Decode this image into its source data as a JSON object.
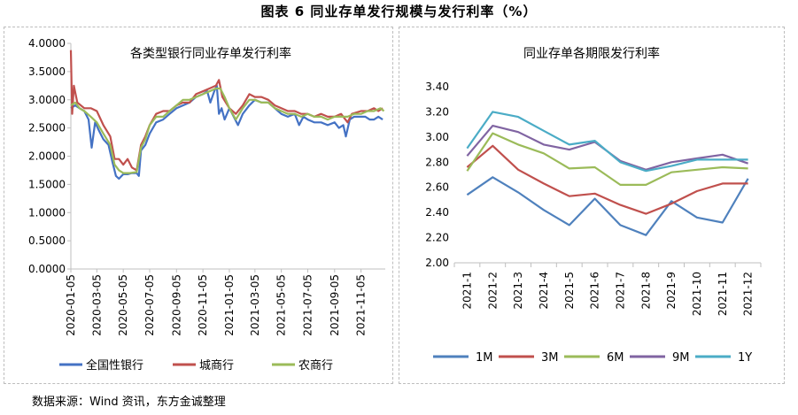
{
  "figure_title": "图表 6   同业存单发行规模与发行利率（%）",
  "source": "数据来源：Wind 资讯，东方金诚整理",
  "chart_data": [
    {
      "type": "line",
      "title": "各类型银行同业存单发行利率",
      "ylim": [
        0,
        4
      ],
      "yticks": [
        "0.0000",
        "0.5000",
        "1.0000",
        "1.5000",
        "2.0000",
        "2.5000",
        "3.0000",
        "3.5000",
        "4.0000"
      ],
      "ytick_values": [
        0,
        0.5,
        1,
        1.5,
        2,
        2.5,
        3,
        3.5,
        4
      ],
      "xticks": [
        "2020-01-05",
        "2020-03-05",
        "2020-05-05",
        "2020-07-05",
        "2020-09-05",
        "2020-11-05",
        "2021-01-05",
        "2021-03-05",
        "2021-05-05",
        "2021-07-05",
        "2021-09-05",
        "2021-11-05"
      ],
      "x_start": "2020-01-05",
      "x_end": "2021-12-31",
      "legend_position": "bottom",
      "series": [
        {
          "name": "全国性银行",
          "color": "#4472C4",
          "points": [
            [
              "2020-01-05",
              2.85
            ],
            [
              "2020-01-15",
              2.9
            ],
            [
              "2020-01-25",
              2.85
            ],
            [
              "2020-02-05",
              2.8
            ],
            [
              "2020-02-15",
              2.65
            ],
            [
              "2020-02-22",
              2.15
            ],
            [
              "2020-03-01",
              2.6
            ],
            [
              "2020-03-10",
              2.45
            ],
            [
              "2020-03-20",
              2.3
            ],
            [
              "2020-04-01",
              2.2
            ],
            [
              "2020-04-10",
              1.9
            ],
            [
              "2020-04-18",
              1.65
            ],
            [
              "2020-04-25",
              1.6
            ],
            [
              "2020-05-05",
              1.68
            ],
            [
              "2020-05-15",
              1.68
            ],
            [
              "2020-05-25",
              1.7
            ],
            [
              "2020-06-05",
              1.7
            ],
            [
              "2020-06-10",
              1.65
            ],
            [
              "2020-06-15",
              2.1
            ],
            [
              "2020-06-25",
              2.2
            ],
            [
              "2020-07-05",
              2.4
            ],
            [
              "2020-07-20",
              2.6
            ],
            [
              "2020-08-05",
              2.65
            ],
            [
              "2020-08-20",
              2.75
            ],
            [
              "2020-09-05",
              2.85
            ],
            [
              "2020-09-20",
              2.9
            ],
            [
              "2020-10-05",
              2.95
            ],
            [
              "2020-10-20",
              3.05
            ],
            [
              "2020-11-05",
              3.1
            ],
            [
              "2020-11-15",
              3.15
            ],
            [
              "2020-11-22",
              2.95
            ],
            [
              "2020-12-01",
              3.15
            ],
            [
              "2020-12-07",
              3.25
            ],
            [
              "2020-12-12",
              2.75
            ],
            [
              "2020-12-18",
              2.85
            ],
            [
              "2020-12-25",
              2.65
            ],
            [
              "2021-01-05",
              2.85
            ],
            [
              "2021-01-15",
              2.7
            ],
            [
              "2021-01-25",
              2.55
            ],
            [
              "2021-02-05",
              2.75
            ],
            [
              "2021-02-20",
              2.9
            ],
            [
              "2021-03-05",
              3.0
            ],
            [
              "2021-03-20",
              2.95
            ],
            [
              "2021-04-05",
              2.95
            ],
            [
              "2021-04-20",
              2.85
            ],
            [
              "2021-05-05",
              2.75
            ],
            [
              "2021-05-20",
              2.7
            ],
            [
              "2021-06-05",
              2.75
            ],
            [
              "2021-06-15",
              2.55
            ],
            [
              "2021-06-25",
              2.7
            ],
            [
              "2021-07-05",
              2.65
            ],
            [
              "2021-07-20",
              2.6
            ],
            [
              "2021-08-05",
              2.6
            ],
            [
              "2021-08-20",
              2.55
            ],
            [
              "2021-09-05",
              2.6
            ],
            [
              "2021-09-15",
              2.5
            ],
            [
              "2021-09-25",
              2.55
            ],
            [
              "2021-10-01",
              2.35
            ],
            [
              "2021-10-10",
              2.65
            ],
            [
              "2021-10-20",
              2.7
            ],
            [
              "2021-11-05",
              2.7
            ],
            [
              "2021-11-15",
              2.7
            ],
            [
              "2021-11-25",
              2.65
            ],
            [
              "2021-12-05",
              2.65
            ],
            [
              "2021-12-15",
              2.7
            ],
            [
              "2021-12-25",
              2.65
            ]
          ]
        },
        {
          "name": "城商行",
          "color": "#C0504D",
          "points": [
            [
              "2020-01-05",
              3.88
            ],
            [
              "2020-01-08",
              2.75
            ],
            [
              "2020-01-12",
              3.25
            ],
            [
              "2020-01-20",
              2.95
            ],
            [
              "2020-02-05",
              2.85
            ],
            [
              "2020-02-20",
              2.85
            ],
            [
              "2020-03-05",
              2.8
            ],
            [
              "2020-03-20",
              2.55
            ],
            [
              "2020-04-05",
              2.35
            ],
            [
              "2020-04-15",
              1.95
            ],
            [
              "2020-04-25",
              1.95
            ],
            [
              "2020-05-05",
              1.85
            ],
            [
              "2020-05-15",
              1.95
            ],
            [
              "2020-05-25",
              1.8
            ],
            [
              "2020-06-05",
              1.75
            ],
            [
              "2020-06-15",
              2.2
            ],
            [
              "2020-06-25",
              2.35
            ],
            [
              "2020-07-05",
              2.55
            ],
            [
              "2020-07-20",
              2.75
            ],
            [
              "2020-08-05",
              2.8
            ],
            [
              "2020-08-20",
              2.8
            ],
            [
              "2020-09-05",
              2.9
            ],
            [
              "2020-09-20",
              2.95
            ],
            [
              "2020-10-05",
              2.95
            ],
            [
              "2020-10-20",
              3.1
            ],
            [
              "2020-11-05",
              3.15
            ],
            [
              "2020-11-20",
              3.2
            ],
            [
              "2020-12-05",
              3.25
            ],
            [
              "2020-12-12",
              3.35
            ],
            [
              "2020-12-20",
              3.05
            ],
            [
              "2021-01-05",
              2.85
            ],
            [
              "2021-01-20",
              2.75
            ],
            [
              "2021-02-05",
              2.9
            ],
            [
              "2021-02-20",
              3.1
            ],
            [
              "2021-03-05",
              3.05
            ],
            [
              "2021-03-20",
              3.05
            ],
            [
              "2021-04-05",
              3.0
            ],
            [
              "2021-04-20",
              2.9
            ],
            [
              "2021-05-05",
              2.85
            ],
            [
              "2021-05-20",
              2.8
            ],
            [
              "2021-06-05",
              2.8
            ],
            [
              "2021-06-20",
              2.75
            ],
            [
              "2021-07-05",
              2.75
            ],
            [
              "2021-07-20",
              2.7
            ],
            [
              "2021-08-05",
              2.75
            ],
            [
              "2021-08-20",
              2.7
            ],
            [
              "2021-09-05",
              2.7
            ],
            [
              "2021-09-20",
              2.75
            ],
            [
              "2021-10-05",
              2.6
            ],
            [
              "2021-10-15",
              2.75
            ],
            [
              "2021-11-05",
              2.8
            ],
            [
              "2021-11-20",
              2.8
            ],
            [
              "2021-12-05",
              2.85
            ],
            [
              "2021-12-15",
              2.8
            ],
            [
              "2021-12-25",
              2.85
            ]
          ]
        },
        {
          "name": "农商行",
          "color": "#9BBB59",
          "points": [
            [
              "2020-01-05",
              2.9
            ],
            [
              "2020-01-15",
              2.95
            ],
            [
              "2020-01-25",
              2.85
            ],
            [
              "2020-02-05",
              2.8
            ],
            [
              "2020-02-20",
              2.7
            ],
            [
              "2020-03-05",
              2.6
            ],
            [
              "2020-03-20",
              2.4
            ],
            [
              "2020-04-05",
              2.2
            ],
            [
              "2020-04-15",
              1.85
            ],
            [
              "2020-04-25",
              1.75
            ],
            [
              "2020-05-05",
              1.7
            ],
            [
              "2020-05-20",
              1.7
            ],
            [
              "2020-06-05",
              1.72
            ],
            [
              "2020-06-15",
              2.15
            ],
            [
              "2020-06-25",
              2.3
            ],
            [
              "2020-07-05",
              2.55
            ],
            [
              "2020-07-20",
              2.7
            ],
            [
              "2020-08-05",
              2.7
            ],
            [
              "2020-08-20",
              2.8
            ],
            [
              "2020-09-05",
              2.9
            ],
            [
              "2020-09-20",
              3.0
            ],
            [
              "2020-10-05",
              3.0
            ],
            [
              "2020-10-20",
              3.05
            ],
            [
              "2020-11-05",
              3.1
            ],
            [
              "2020-11-20",
              3.15
            ],
            [
              "2020-12-05",
              3.2
            ],
            [
              "2020-12-15",
              3.2
            ],
            [
              "2020-12-25",
              3.05
            ],
            [
              "2021-01-05",
              2.85
            ],
            [
              "2021-01-20",
              2.65
            ],
            [
              "2021-02-05",
              2.85
            ],
            [
              "2021-02-20",
              3.0
            ],
            [
              "2021-03-05",
              3.0
            ],
            [
              "2021-03-20",
              2.95
            ],
            [
              "2021-04-05",
              2.95
            ],
            [
              "2021-04-20",
              2.85
            ],
            [
              "2021-05-05",
              2.8
            ],
            [
              "2021-05-20",
              2.75
            ],
            [
              "2021-06-05",
              2.75
            ],
            [
              "2021-06-20",
              2.7
            ],
            [
              "2021-07-05",
              2.75
            ],
            [
              "2021-07-20",
              2.7
            ],
            [
              "2021-08-05",
              2.7
            ],
            [
              "2021-08-20",
              2.65
            ],
            [
              "2021-09-05",
              2.7
            ],
            [
              "2021-09-20",
              2.7
            ],
            [
              "2021-10-05",
              2.7
            ],
            [
              "2021-10-20",
              2.75
            ],
            [
              "2021-11-05",
              2.75
            ],
            [
              "2021-11-20",
              2.8
            ],
            [
              "2021-12-05",
              2.8
            ],
            [
              "2021-12-20",
              2.85
            ],
            [
              "2021-12-28",
              2.8
            ]
          ]
        }
      ]
    },
    {
      "type": "line",
      "title": "同业存单各期限发行利率",
      "ylim": [
        2.0,
        3.4
      ],
      "yticks": [
        "2.00",
        "2.20",
        "2.40",
        "2.60",
        "2.80",
        "3.00",
        "3.20",
        "3.40"
      ],
      "ytick_values": [
        2.0,
        2.2,
        2.4,
        2.6,
        2.8,
        3.0,
        3.2,
        3.4
      ],
      "categories": [
        "2021-1",
        "2021-2",
        "2021-3",
        "2021-4",
        "2021-5",
        "2021-6",
        "2021-7",
        "2021-8",
        "2021-9",
        "2021-10",
        "2021-11",
        "2021-12"
      ],
      "legend_position": "bottom",
      "series": [
        {
          "name": "1M",
          "color": "#4F81BD",
          "values": [
            2.54,
            2.68,
            2.56,
            2.42,
            2.3,
            2.51,
            2.3,
            2.22,
            2.49,
            2.36,
            2.32,
            2.67
          ]
        },
        {
          "name": "3M",
          "color": "#C0504D",
          "values": [
            2.76,
            2.93,
            2.74,
            2.63,
            2.53,
            2.55,
            2.46,
            2.39,
            2.47,
            2.57,
            2.63,
            2.63
          ]
        },
        {
          "name": "6M",
          "color": "#9BBB59",
          "values": [
            2.73,
            3.03,
            2.94,
            2.87,
            2.75,
            2.76,
            2.62,
            2.62,
            2.72,
            2.74,
            2.76,
            2.75
          ]
        },
        {
          "name": "9M",
          "color": "#8064A2",
          "values": [
            2.85,
            3.09,
            3.04,
            2.94,
            2.9,
            2.96,
            2.81,
            2.74,
            2.8,
            2.83,
            2.86,
            2.79
          ]
        },
        {
          "name": "1Y",
          "color": "#4BACC6",
          "values": [
            2.91,
            3.2,
            3.16,
            3.05,
            2.94,
            2.97,
            2.8,
            2.73,
            2.77,
            2.82,
            2.82,
            2.82
          ]
        }
      ]
    }
  ]
}
